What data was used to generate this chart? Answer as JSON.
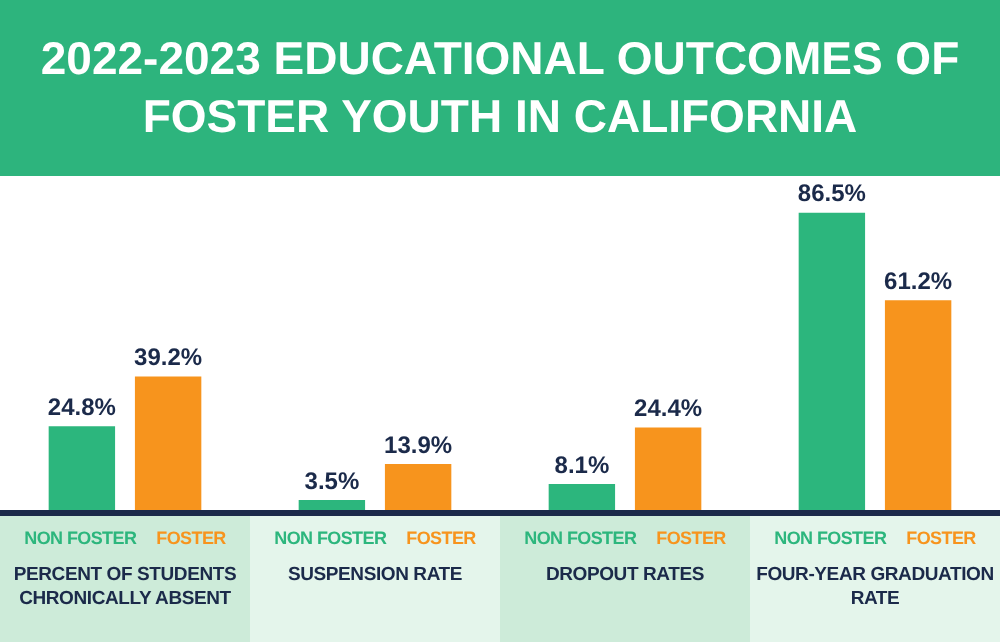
{
  "chart_data": {
    "type": "bar",
    "title": "2022-2023 EDUCATIONAL OUTCOMES OF FOSTER YOUTH IN CALIFORNIA",
    "categories": [
      "PERCENT OF STUDENTS CHRONICALLY ABSENT",
      "SUSPENSION RATE",
      "DROPOUT RATES",
      "FOUR-YEAR GRADUATION RATE"
    ],
    "series": [
      {
        "name": "NON FOSTER",
        "color": "#2cb67d",
        "values": [
          24.8,
          3.5,
          8.1,
          86.5
        ],
        "value_labels": [
          "24.8%",
          "3.5%",
          "8.1%",
          "86.5%"
        ]
      },
      {
        "name": "FOSTER",
        "color": "#f7941d",
        "values": [
          39.2,
          13.9,
          24.4,
          61.2
        ],
        "value_labels": [
          "39.2%",
          "13.9%",
          "24.4%",
          "61.2%"
        ]
      }
    ],
    "ylim": [
      0,
      96
    ],
    "legend": false,
    "grid": false
  }
}
